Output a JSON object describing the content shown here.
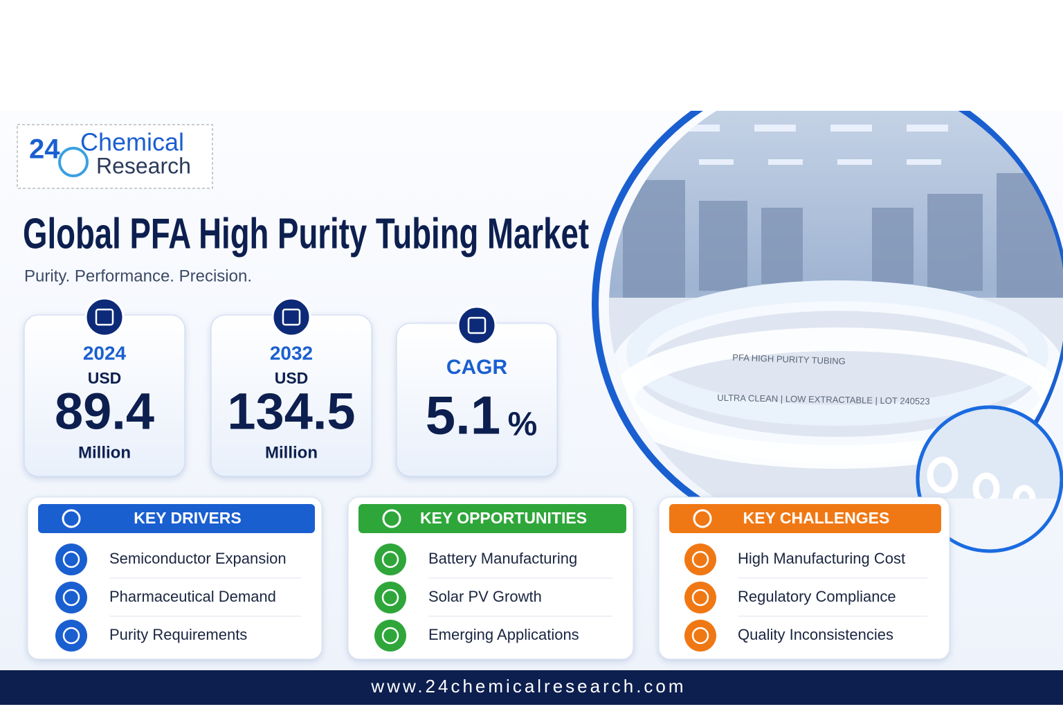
{
  "logo": {
    "number": "24",
    "line1": "Chemical",
    "line2": "Research"
  },
  "header": {
    "title": "Global PFA High Purity Tubing Market",
    "subtitle": "Purity. Performance. Precision."
  },
  "stats": [
    {
      "label": "2024",
      "unit": "USD",
      "value": "89.4",
      "scale": "Million"
    },
    {
      "label": "2032",
      "unit": "USD",
      "value": "134.5",
      "scale": "Million"
    },
    {
      "label": "CAGR",
      "value": "5.1",
      "suffix": "%"
    }
  ],
  "photo": {
    "print1": "PFA   HIGH  PURITY    TUBING",
    "print2": "ULTRA  CLEAN   |   LOW  EXTRACTABLE    |   LOT   240523"
  },
  "panels": [
    {
      "title": "KEY DRIVERS",
      "color": "#1a5fd0",
      "items": [
        "Semiconductor Expansion",
        "Pharmaceutical Demand",
        "Purity Requirements"
      ]
    },
    {
      "title": "KEY OPPORTUNITIES",
      "color": "#2fa63a",
      "items": [
        "Battery Manufacturing",
        "Solar PV Growth",
        "Emerging Applications"
      ]
    },
    {
      "title": "KEY CHALLENGES",
      "color": "#f07814",
      "items": [
        "High Manufacturing Cost",
        "Regulatory Compliance",
        "Quality Inconsistencies"
      ]
    }
  ],
  "footer": {
    "url": "www.24chemicalresearch.com"
  }
}
